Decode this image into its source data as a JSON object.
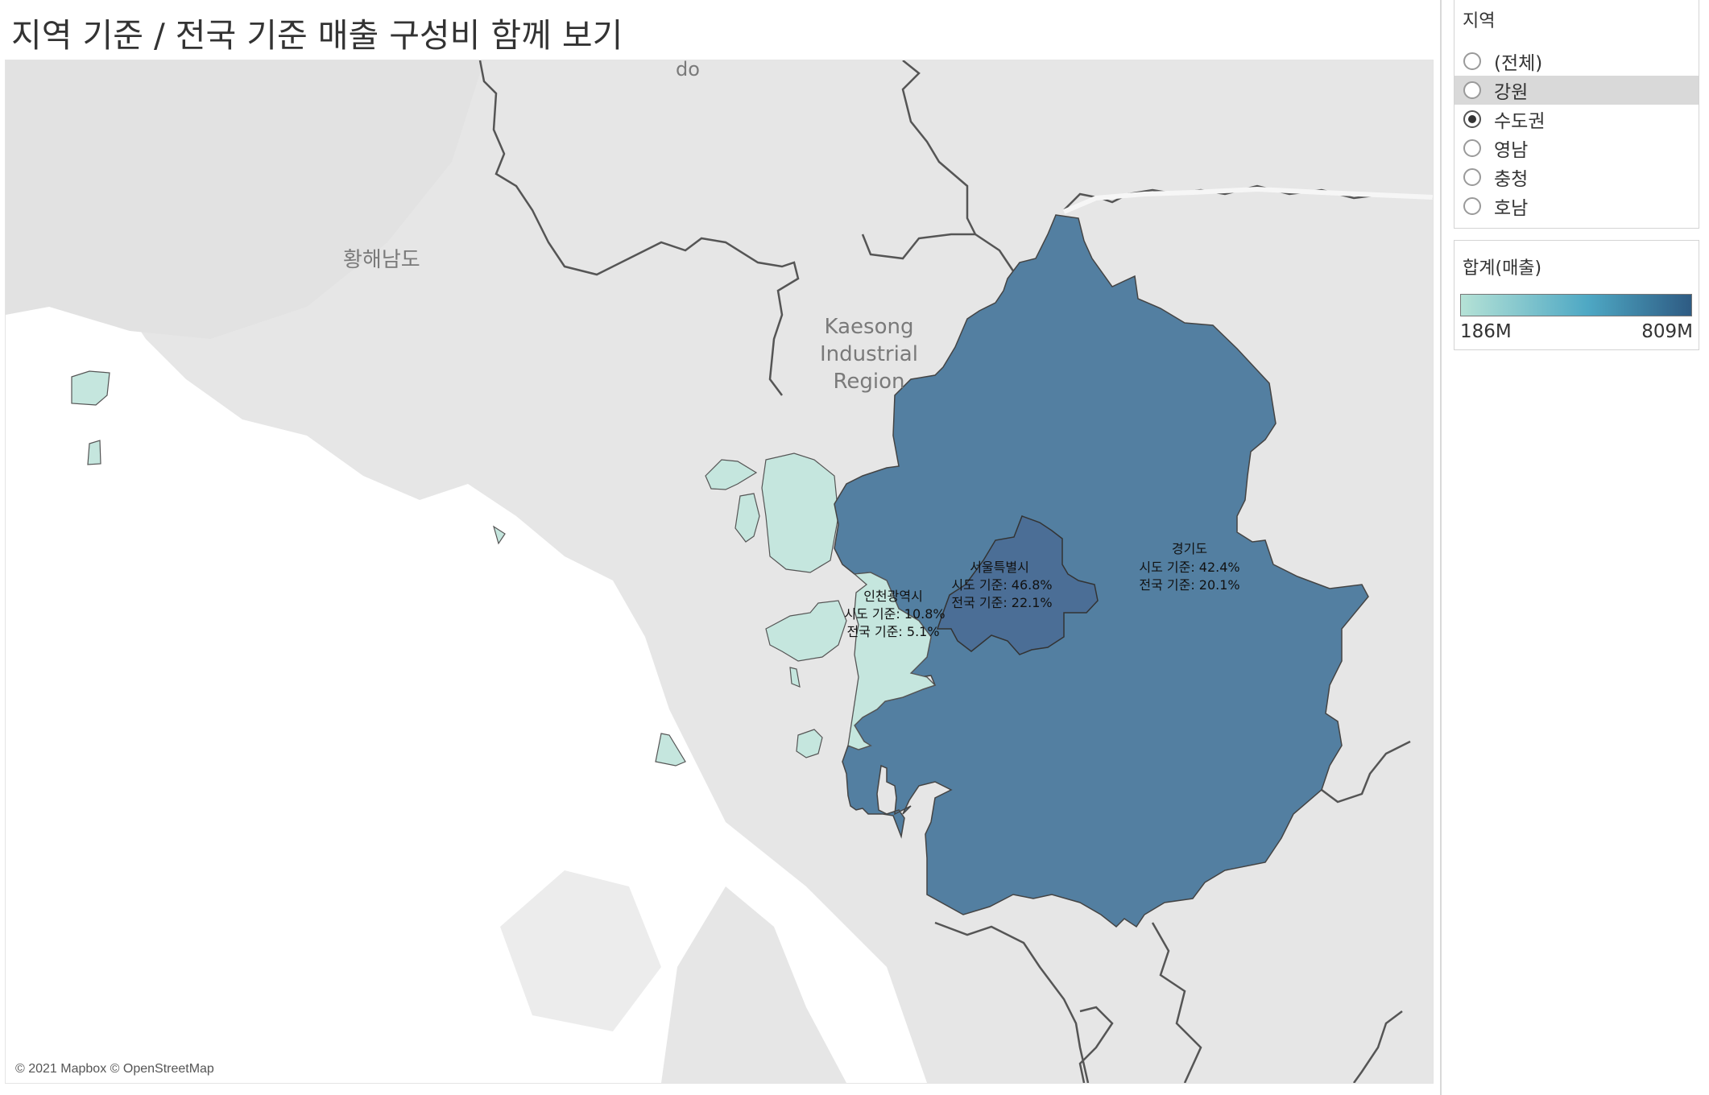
{
  "dashboard": {
    "title": "지역 기준 / 전국 기준 매출 구성비 함께 보기"
  },
  "map": {
    "attribution": "© 2021 Mapbox © OpenStreetMap",
    "place_labels": {
      "do": "do",
      "hwanghae": "황해남도",
      "kaesong_1": "Kaesong",
      "kaesong_2": "Industrial",
      "kaesong_3": "Region"
    },
    "colors": {
      "gyeonggi": "#537fa1",
      "seoul": "#4b6e96",
      "incheon": "#c5e6de",
      "land": "#e4e4e4",
      "sea": "#ffffff",
      "border": "#555555"
    },
    "regions": [
      {
        "id": "seoul",
        "name": "서울특별시",
        "regional_share": "시도 기준: 46.8%",
        "national_share": "전국 기준: 22.1%"
      },
      {
        "id": "gyeonggi",
        "name": "경기도",
        "regional_share": "시도 기준: 42.4%",
        "national_share": "전국 기준: 20.1%"
      },
      {
        "id": "incheon",
        "name": "인천광역시",
        "regional_share": "시도 기준: 10.8%",
        "national_share": "전국 기준: 5.1%"
      }
    ]
  },
  "filter": {
    "title": "지역",
    "selected": "수도권",
    "hovered": "강원",
    "options": [
      "(전체)",
      "강원",
      "수도권",
      "영남",
      "충청",
      "호남"
    ]
  },
  "legend": {
    "title": "합계(매출)",
    "min_label": "186M",
    "max_label": "809M",
    "color_low": "#b5e2d6",
    "color_mid": "#4ea8c4",
    "color_high": "#2e5b83"
  }
}
